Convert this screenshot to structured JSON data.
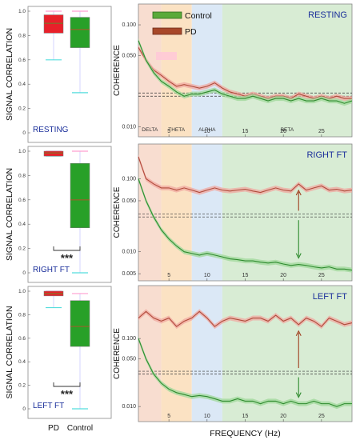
{
  "chart_data": {
    "type": "figure",
    "left_column": {
      "type": "box",
      "ylabel": "SIGNAL CORRELATION",
      "ylim": [
        0,
        1.0
      ],
      "yticks": [
        "0",
        "0.2",
        "0.4",
        "0.6",
        "0.8",
        "1.0"
      ],
      "categories": [
        "PD",
        "Control"
      ],
      "significance": "***",
      "panels": [
        {
          "label": "RESTING",
          "boxes": [
            {
              "group": "PD",
              "whisker_low": 0.6,
              "q1": 0.82,
              "median": 0.9,
              "q3": 0.97,
              "whisker_high": 1.0
            },
            {
              "group": "Control",
              "whisker_low": 0.33,
              "q1": 0.7,
              "median": 0.85,
              "q3": 0.95,
              "whisker_high": 1.0
            }
          ]
        },
        {
          "label": "RIGHT FT",
          "boxes": [
            {
              "group": "PD",
              "whisker_low": 0.96,
              "q1": 0.96,
              "median": 0.985,
              "q3": 1.0,
              "whisker_high": 1.0
            },
            {
              "group": "Control",
              "whisker_low": 0.0,
              "q1": 0.37,
              "median": 0.6,
              "q3": 0.9,
              "whisker_high": 1.0
            }
          ]
        },
        {
          "label": "LEFT FT",
          "boxes": [
            {
              "group": "PD",
              "whisker_low": 0.86,
              "q1": 0.96,
              "median": 0.98,
              "q3": 1.0,
              "whisker_high": 1.0
            },
            {
              "group": "Control",
              "whisker_low": 0.0,
              "q1": 0.53,
              "median": 0.7,
              "q3": 0.92,
              "whisker_high": 0.98
            }
          ]
        }
      ]
    },
    "right_column": {
      "type": "line",
      "ylabel": "COHERENCE",
      "xlabel": "FREQUENCY (Hz)",
      "yscale": "log",
      "xlim": [
        1,
        29
      ],
      "xticks": [
        "5",
        "10",
        "15",
        "20",
        "25"
      ],
      "legend": {
        "placement": "top-left",
        "entries": [
          "Control",
          "PD"
        ]
      },
      "colors": {
        "control": "#2e8b2e",
        "pd": "#b04a3a"
      },
      "bands": [
        {
          "name": "DELTA",
          "range": [
            1,
            4
          ],
          "color": "#f8ddd0"
        },
        {
          "name": "THETA",
          "range": [
            4,
            8
          ],
          "color": "#fbe2c3"
        },
        {
          "name": "ALPHA",
          "range": [
            8,
            12
          ],
          "color": "#dbe8f6"
        },
        {
          "name": "BETA",
          "range": [
            12,
            29
          ],
          "color": "#d8ecd4"
        }
      ],
      "panels": [
        {
          "label": "RESTING",
          "yticks": [
            "0.010",
            "0.050",
            "0.100"
          ],
          "ylim": [
            0.008,
            0.16
          ],
          "threshold": [
            0.02,
            0.0215
          ],
          "series": [
            {
              "name": "PD",
              "x": [
                1,
                2,
                3,
                4,
                5,
                6,
                7,
                8,
                9,
                10,
                11,
                12,
                13,
                14,
                15,
                16,
                17,
                18,
                19,
                20,
                21,
                22,
                23,
                24,
                25,
                26,
                27,
                28,
                29
              ],
              "y": [
                0.06,
                0.045,
                0.036,
                0.032,
                0.028,
                0.025,
                0.026,
                0.025,
                0.024,
                0.025,
                0.027,
                0.024,
                0.022,
                0.021,
                0.02,
                0.021,
                0.02,
                0.019,
                0.02,
                0.02,
                0.019,
                0.021,
                0.02,
                0.019,
                0.02,
                0.019,
                0.02,
                0.019,
                0.019
              ]
            },
            {
              "name": "Control",
              "x": [
                1,
                2,
                3,
                4,
                5,
                6,
                7,
                8,
                9,
                10,
                11,
                12,
                13,
                14,
                15,
                16,
                17,
                18,
                19,
                20,
                21,
                22,
                23,
                24,
                25,
                26,
                27,
                28,
                29
              ],
              "y": [
                0.07,
                0.045,
                0.034,
                0.028,
                0.025,
                0.022,
                0.02,
                0.021,
                0.021,
                0.022,
                0.023,
                0.021,
                0.02,
                0.019,
                0.019,
                0.02,
                0.019,
                0.018,
                0.019,
                0.019,
                0.018,
                0.019,
                0.018,
                0.018,
                0.019,
                0.018,
                0.018,
                0.017,
                0.018
              ]
            }
          ]
        },
        {
          "label": "RIGHT FT",
          "yticks": [
            "0.005",
            "0.010",
            "0.050",
            "0.100"
          ],
          "ylim": [
            0.004,
            0.3
          ],
          "threshold": [
            0.03,
            0.033
          ],
          "series": [
            {
              "name": "PD",
              "x": [
                1,
                2,
                3,
                4,
                5,
                6,
                7,
                8,
                9,
                10,
                11,
                12,
                13,
                14,
                15,
                16,
                17,
                18,
                19,
                20,
                21,
                22,
                23,
                24,
                25,
                26,
                27,
                28,
                29
              ],
              "y": [
                0.2,
                0.1,
                0.085,
                0.075,
                0.075,
                0.07,
                0.075,
                0.07,
                0.065,
                0.07,
                0.075,
                0.07,
                0.068,
                0.07,
                0.072,
                0.068,
                0.065,
                0.07,
                0.075,
                0.07,
                0.068,
                0.085,
                0.07,
                0.075,
                0.08,
                0.07,
                0.072,
                0.068,
                0.07
              ]
            },
            {
              "name": "Control",
              "x": [
                1,
                2,
                3,
                4,
                5,
                6,
                7,
                8,
                9,
                10,
                11,
                12,
                13,
                14,
                15,
                16,
                17,
                18,
                19,
                20,
                21,
                22,
                23,
                24,
                25,
                26,
                27,
                28,
                29
              ],
              "y": [
                0.1,
                0.05,
                0.03,
                0.02,
                0.015,
                0.012,
                0.01,
                0.0095,
                0.009,
                0.0095,
                0.009,
                0.0085,
                0.008,
                0.0078,
                0.0075,
                0.0075,
                0.0072,
                0.007,
                0.0072,
                0.0068,
                0.0065,
                0.0067,
                0.0065,
                0.0062,
                0.006,
                0.0062,
                0.0058,
                0.0058,
                0.0056
              ]
            }
          ]
        },
        {
          "label": "LEFT FT",
          "yticks": [
            "0.010",
            "0.050",
            "0.100"
          ],
          "ylim": [
            0.006,
            0.6
          ],
          "threshold": [
            0.03,
            0.033
          ],
          "series": [
            {
              "name": "PD",
              "x": [
                1,
                2,
                3,
                4,
                5,
                6,
                7,
                8,
                9,
                10,
                11,
                12,
                13,
                14,
                15,
                16,
                17,
                18,
                19,
                20,
                21,
                22,
                23,
                24,
                25,
                26,
                27,
                28,
                29
              ],
              "y": [
                0.2,
                0.25,
                0.2,
                0.18,
                0.2,
                0.15,
                0.18,
                0.2,
                0.25,
                0.2,
                0.15,
                0.18,
                0.2,
                0.19,
                0.18,
                0.2,
                0.2,
                0.18,
                0.22,
                0.18,
                0.2,
                0.16,
                0.2,
                0.18,
                0.15,
                0.2,
                0.18,
                0.16,
                0.17
              ]
            },
            {
              "name": "Control",
              "x": [
                1,
                2,
                3,
                4,
                5,
                6,
                7,
                8,
                9,
                10,
                11,
                12,
                13,
                14,
                15,
                16,
                17,
                18,
                19,
                20,
                21,
                22,
                23,
                24,
                25,
                26,
                27,
                28,
                29
              ],
              "y": [
                0.1,
                0.05,
                0.03,
                0.022,
                0.018,
                0.016,
                0.015,
                0.014,
                0.0145,
                0.014,
                0.013,
                0.012,
                0.012,
                0.013,
                0.012,
                0.012,
                0.011,
                0.012,
                0.012,
                0.011,
                0.012,
                0.011,
                0.011,
                0.012,
                0.011,
                0.011,
                0.01,
                0.011,
                0.011
              ]
            }
          ]
        }
      ]
    }
  }
}
